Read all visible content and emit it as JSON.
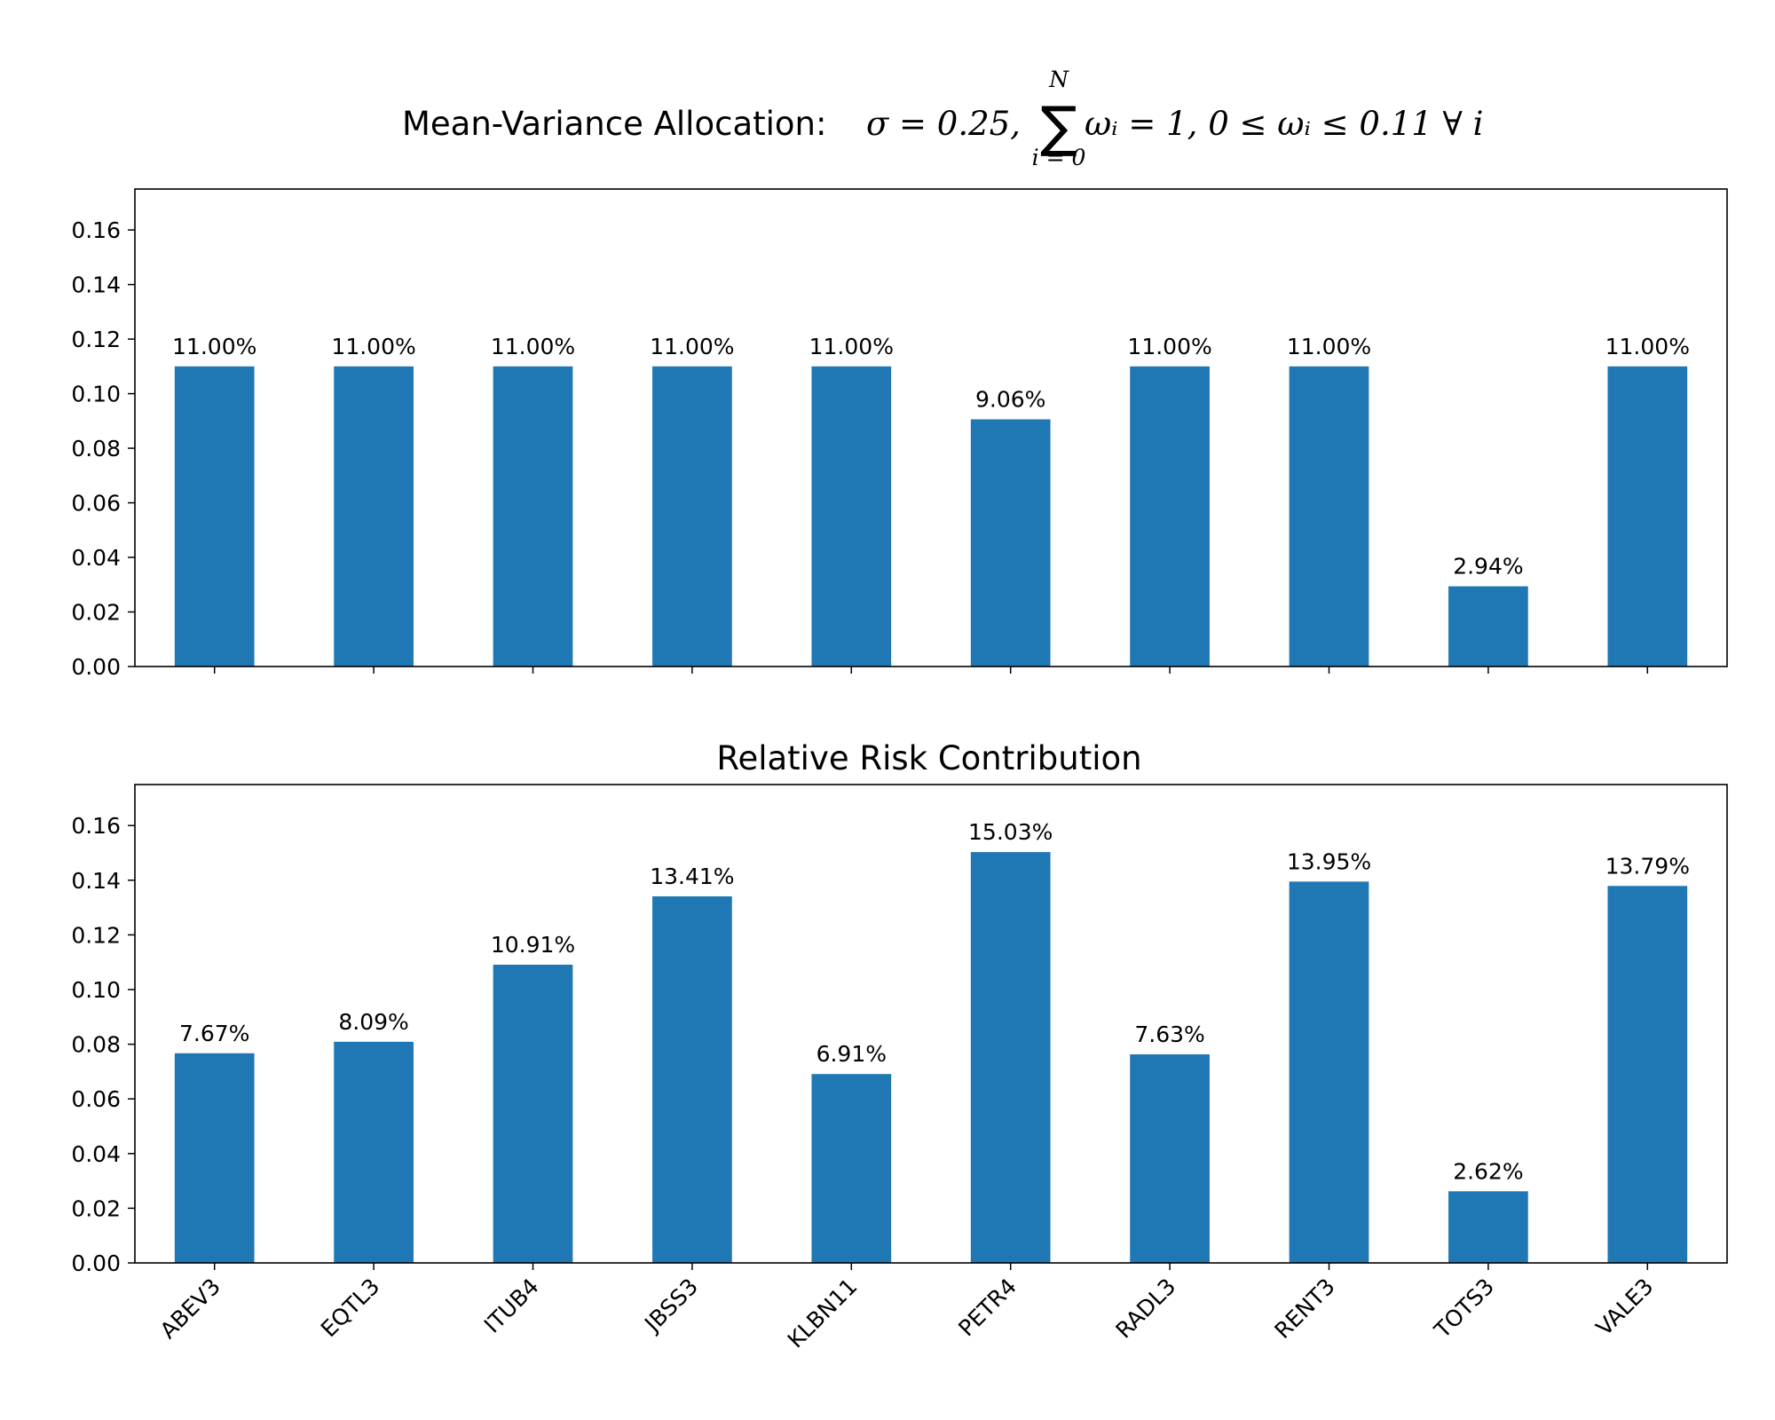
{
  "chart_data": [
    {
      "type": "bar",
      "title": "Mean-Variance Allocation: σ = 0.25, ∑ ωᵢ = 1, 0 ≤ ωᵢ ≤ 0.11 ∀ i",
      "title_parts": {
        "prefix": "Mean-Variance Allocation: ",
        "sigma": "σ = 0.25,",
        "sum_upper": "N",
        "sum_symbol": "∑",
        "sum_lower": "i = 0",
        "constraint": "ωᵢ = 1, 0 ≤ ωᵢ ≤ 0.11 ∀ i"
      },
      "categories": [
        "ABEV3",
        "EQTL3",
        "ITUB4",
        "JBSS3",
        "KLBN11",
        "PETR4",
        "RADL3",
        "RENT3",
        "TOTS3",
        "VALE3"
      ],
      "values": [
        0.11,
        0.11,
        0.11,
        0.11,
        0.11,
        0.0906,
        0.11,
        0.11,
        0.0294,
        0.11
      ],
      "data_labels": [
        "11.00%",
        "11.00%",
        "11.00%",
        "11.00%",
        "11.00%",
        "9.06%",
        "11.00%",
        "11.00%",
        "2.94%",
        "11.00%"
      ],
      "yticks": [
        "0.00",
        "0.02",
        "0.04",
        "0.06",
        "0.08",
        "0.10",
        "0.12",
        "0.14",
        "0.16"
      ],
      "ylim": [
        0,
        0.175
      ],
      "show_xtick_labels": false,
      "color": "#1f77b4",
      "grid": false,
      "xlabel": "",
      "ylabel": ""
    },
    {
      "type": "bar",
      "title": "Relative Risk Contribution",
      "categories": [
        "ABEV3",
        "EQTL3",
        "ITUB4",
        "JBSS3",
        "KLBN11",
        "PETR4",
        "RADL3",
        "RENT3",
        "TOTS3",
        "VALE3"
      ],
      "values": [
        0.0767,
        0.0809,
        0.1091,
        0.1341,
        0.0691,
        0.1503,
        0.0763,
        0.1395,
        0.0262,
        0.1379
      ],
      "data_labels": [
        "7.67%",
        "8.09%",
        "10.91%",
        "13.41%",
        "6.91%",
        "15.03%",
        "7.63%",
        "13.95%",
        "2.62%",
        "13.79%"
      ],
      "yticks": [
        "0.00",
        "0.02",
        "0.04",
        "0.06",
        "0.08",
        "0.10",
        "0.12",
        "0.14",
        "0.16"
      ],
      "ylim": [
        0,
        0.175
      ],
      "show_xtick_labels": true,
      "color": "#1f77b4",
      "grid": false,
      "xlabel": "",
      "ylabel": ""
    }
  ]
}
